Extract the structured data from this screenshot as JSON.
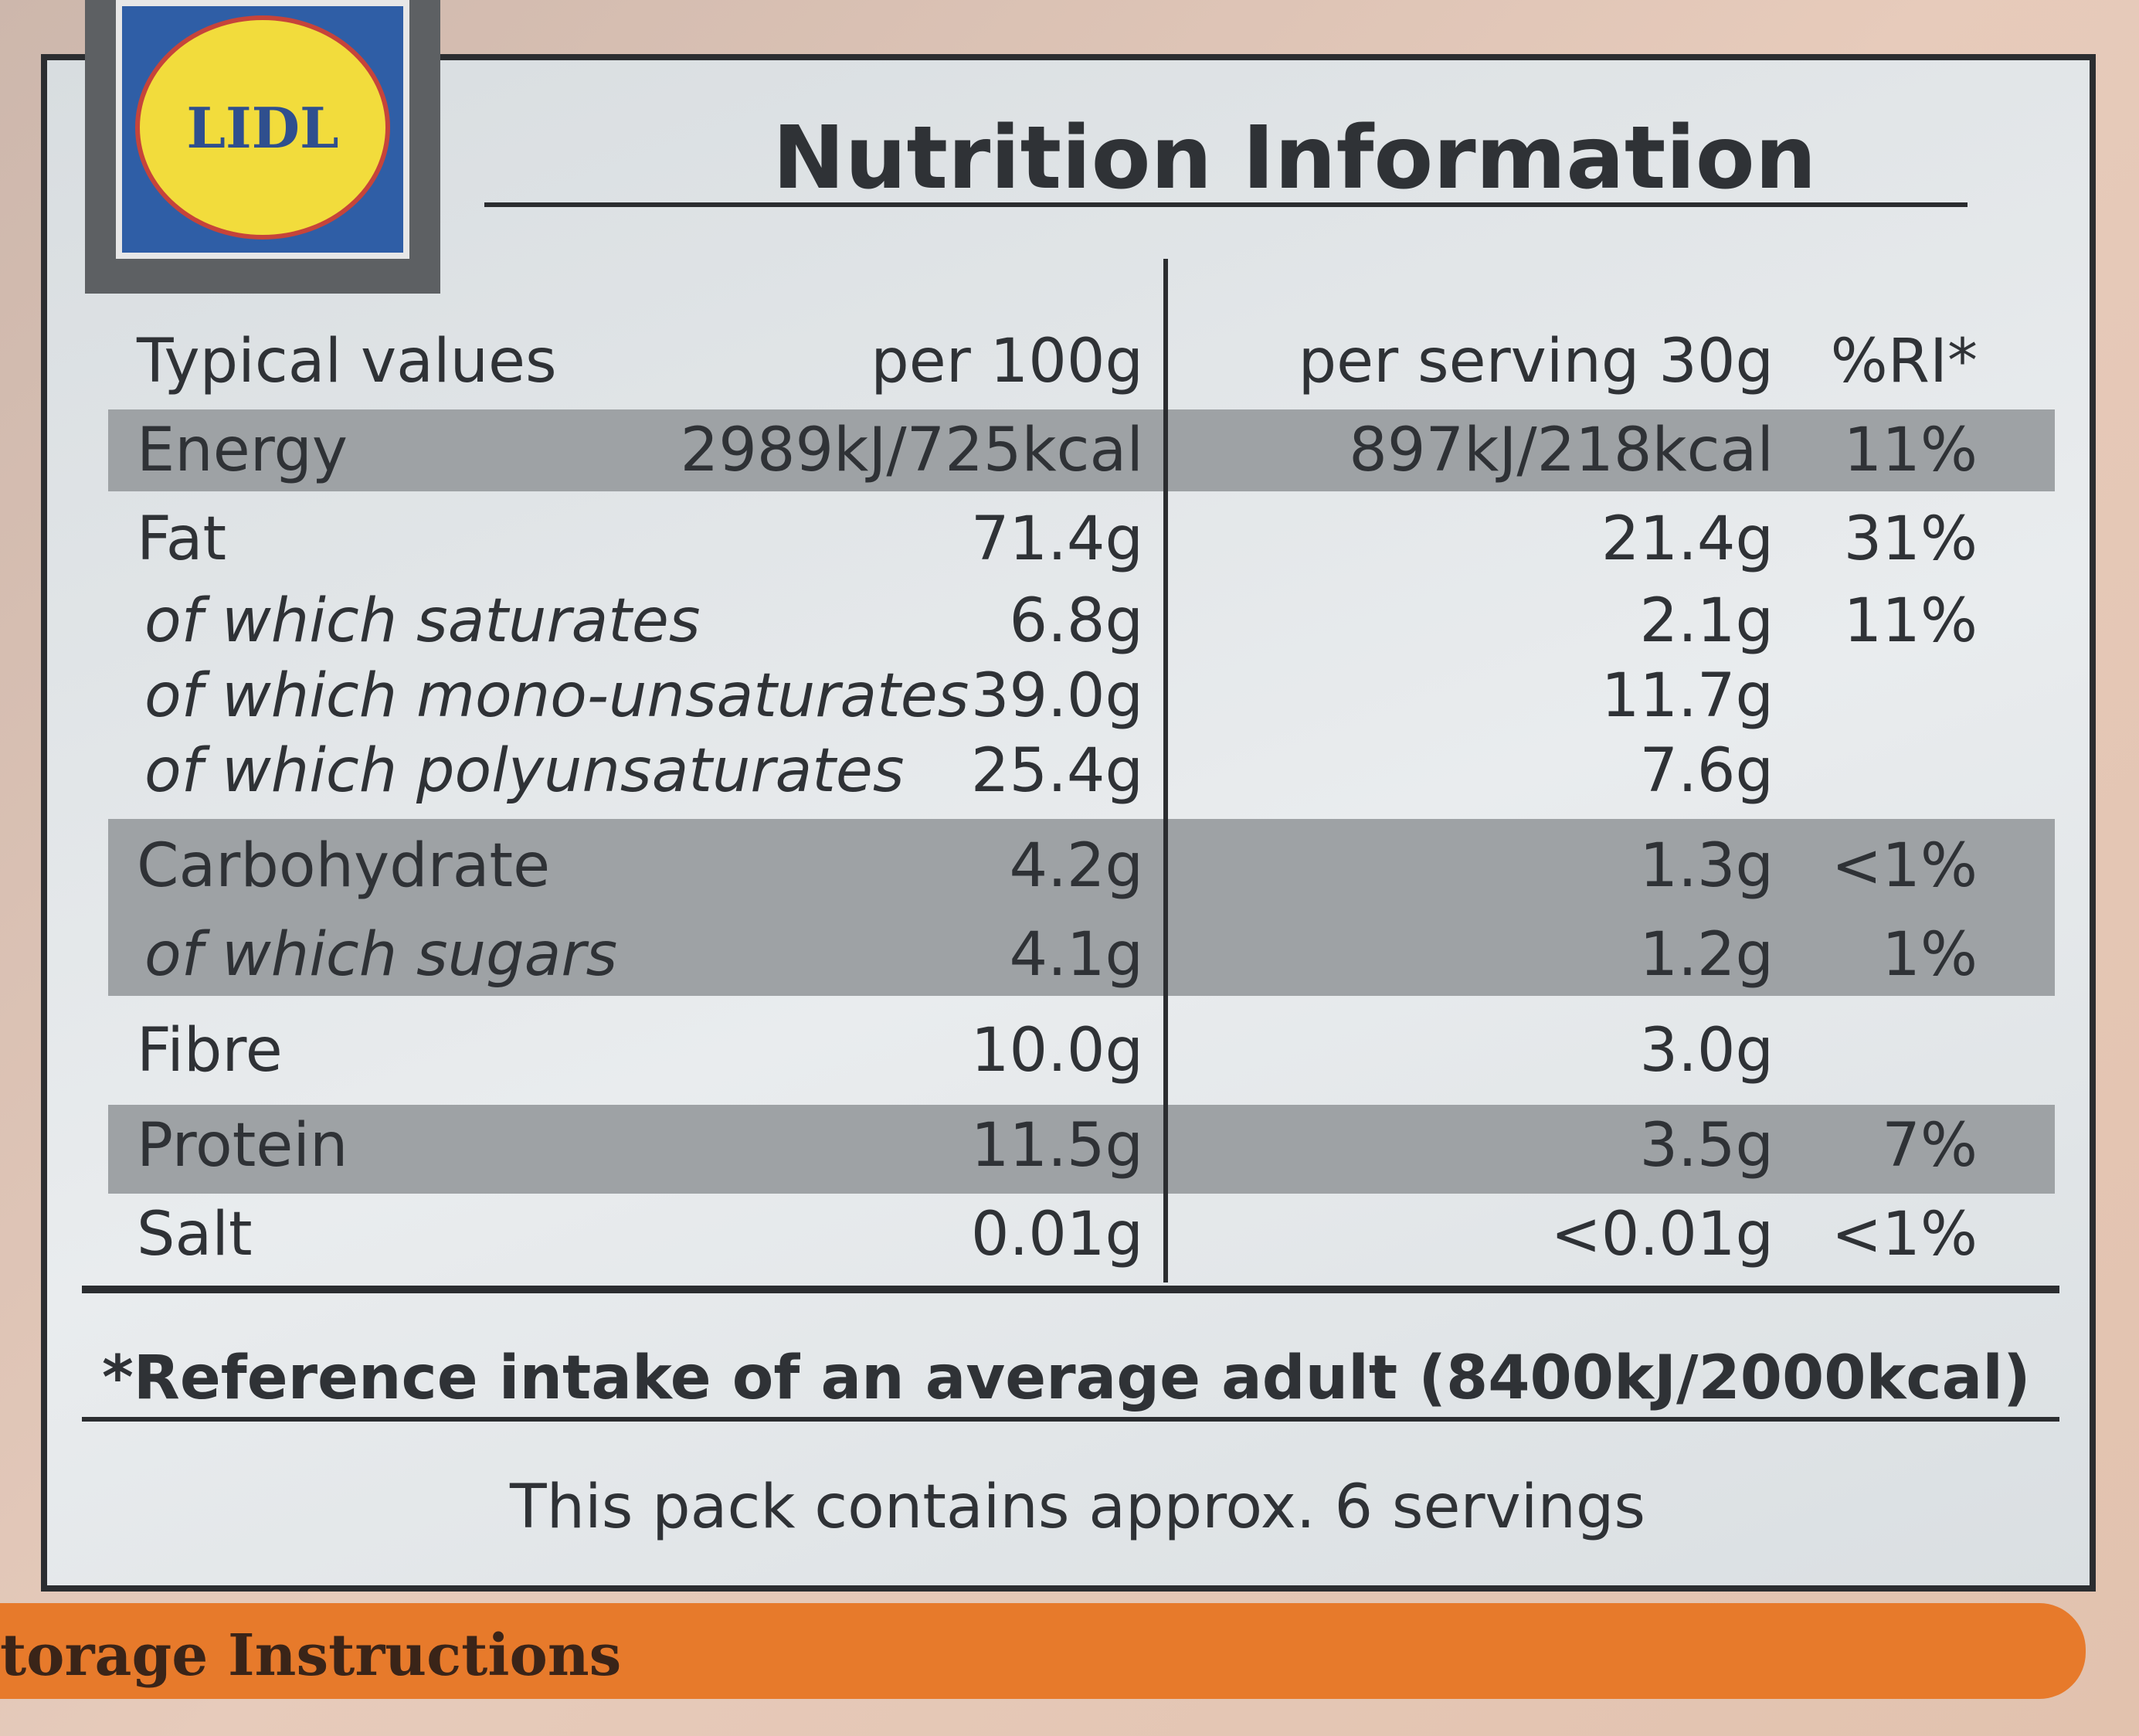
{
  "logo": {
    "text": "LIDL"
  },
  "header": {
    "title": "Nutrition Information"
  },
  "table": {
    "columns": [
      "Typical values",
      "per 100g",
      "per serving 30g",
      "%RI*"
    ],
    "rows": [
      {
        "label": "Energy",
        "per_100g": "2989kJ/725kcal",
        "per_serving": "897kJ/218kcal",
        "ri": "11%"
      },
      {
        "label": "Fat",
        "per_100g": "71.4g",
        "per_serving": "21.4g",
        "ri": "31%"
      },
      {
        "label": "of which saturates",
        "per_100g": "6.8g",
        "per_serving": "2.1g",
        "ri": "11%"
      },
      {
        "label": "of which mono-unsaturates",
        "per_100g": "39.0g",
        "per_serving": "11.7g"
      },
      {
        "label": "of which polyunsaturates",
        "per_100g": "25.4g",
        "per_serving": "7.6g"
      },
      {
        "label": "Carbohydrate",
        "per_100g": "4.2g",
        "per_serving": "1.3g",
        "ri": "<1%"
      },
      {
        "label": "of which sugars",
        "per_100g": "4.1g",
        "per_serving": "1.2g",
        "ri": "1%"
      },
      {
        "label": "Fibre",
        "per_100g": "10.0g",
        "per_serving": "3.0g"
      },
      {
        "label": "Protein",
        "per_100g": "11.5g",
        "per_serving": "3.5g",
        "ri": "7%"
      },
      {
        "label": "Salt",
        "per_100g": "0.01g",
        "per_serving": "<0.01g",
        "ri": "<1%"
      }
    ]
  },
  "footnote": "*Reference intake of an average adult (8400kJ/2000kcal)",
  "servings": "This pack contains approx. 6 servings",
  "storage": {
    "title": "torage Instructions"
  }
}
